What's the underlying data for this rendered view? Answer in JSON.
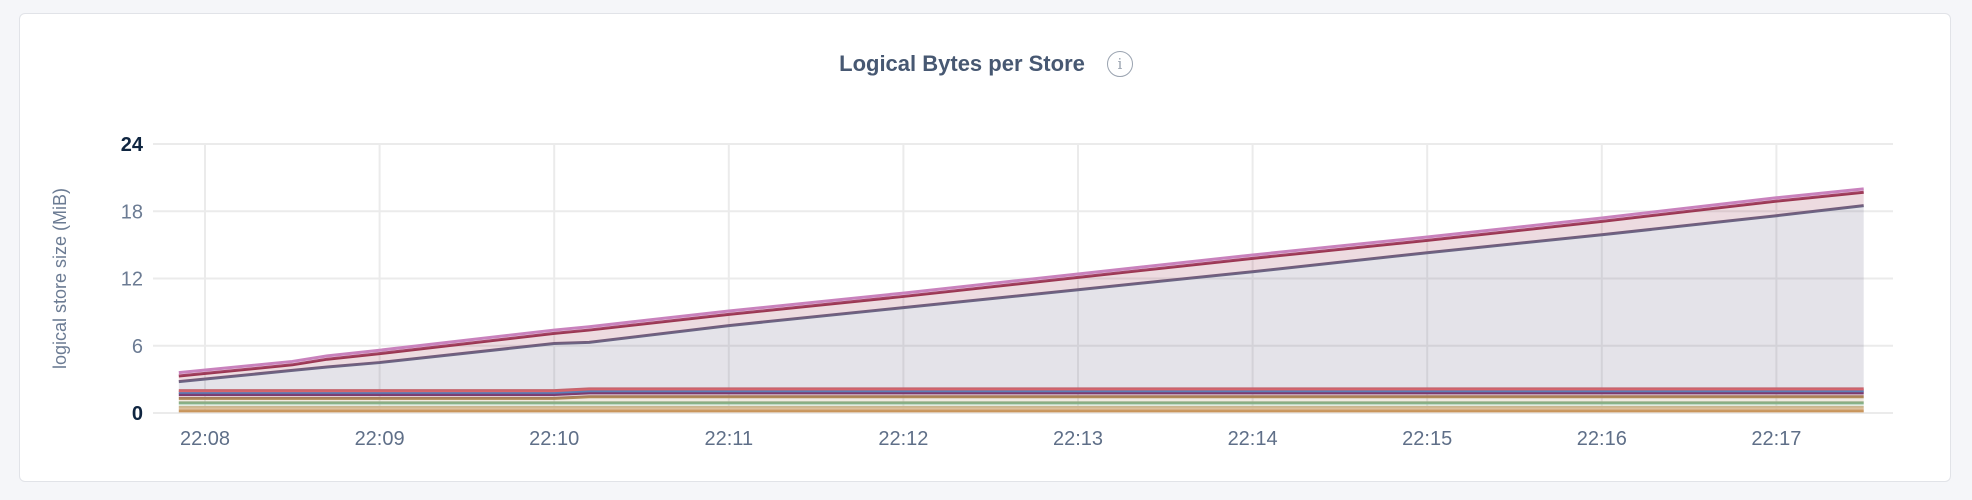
{
  "chart_data": {
    "type": "area",
    "stacked": true,
    "title": "Logical Bytes per Store",
    "ylabel": "logical store size (MiB)",
    "xlabel": "",
    "ylim": [
      0,
      24
    ],
    "yticks": [
      "0",
      "6",
      "12",
      "18",
      "24"
    ],
    "xticks": [
      "22:08",
      "22:09",
      "22:10",
      "22:11",
      "22:12",
      "22:13",
      "22:14",
      "22:15",
      "22:16",
      "22:17"
    ],
    "grid": true,
    "x": [
      "22:07:51",
      "22:08:30",
      "22:08:42",
      "22:09:00",
      "22:10:00",
      "22:10:12",
      "22:11:00",
      "22:12:00",
      "22:13:00",
      "22:14:00",
      "22:15:00",
      "22:16:00",
      "22:17:00",
      "22:17:30"
    ],
    "series": [
      {
        "color": "#c9955c",
        "values": [
          0.2,
          0.2,
          0.2,
          0.2,
          0.2,
          0.2,
          0.2,
          0.2,
          0.2,
          0.2,
          0.2,
          0.2,
          0.2,
          0.2
        ]
      },
      {
        "color": "#d8b892",
        "values": [
          0.3,
          0.3,
          0.3,
          0.3,
          0.3,
          0.3,
          0.3,
          0.3,
          0.3,
          0.3,
          0.3,
          0.3,
          0.3,
          0.3
        ]
      },
      {
        "color": "#86b38a",
        "values": [
          0.4,
          0.4,
          0.4,
          0.4,
          0.4,
          0.4,
          0.4,
          0.4,
          0.4,
          0.4,
          0.4,
          0.4,
          0.4,
          0.4
        ]
      },
      {
        "color": "#b08b57",
        "values": [
          0.4,
          0.4,
          0.4,
          0.4,
          0.4,
          0.55,
          0.55,
          0.55,
          0.55,
          0.55,
          0.55,
          0.55,
          0.55,
          0.55
        ]
      },
      {
        "color": "#7d3a6e",
        "values": [
          0.35,
          0.35,
          0.35,
          0.35,
          0.35,
          0.35,
          0.35,
          0.35,
          0.35,
          0.35,
          0.35,
          0.35,
          0.35,
          0.35
        ]
      },
      {
        "color": "#5c7fb8",
        "values": [
          0.2,
          0.2,
          0.2,
          0.2,
          0.2,
          0.2,
          0.2,
          0.2,
          0.2,
          0.2,
          0.2,
          0.2,
          0.2,
          0.2
        ]
      },
      {
        "color": "#d9646a",
        "values": [
          0.15,
          0.15,
          0.15,
          0.15,
          0.15,
          0.15,
          0.15,
          0.15,
          0.15,
          0.15,
          0.15,
          0.15,
          0.15,
          0.15
        ]
      },
      {
        "color": "#6b6584",
        "values": [
          0.8,
          1.8,
          2.1,
          2.5,
          4.2,
          4.15,
          5.65,
          7.25,
          8.85,
          10.45,
          12.15,
          13.75,
          15.45,
          16.35
        ]
      },
      {
        "color": "#9b3651",
        "values": [
          0.5,
          0.5,
          0.7,
          0.8,
          0.9,
          1.1,
          1.0,
          1.0,
          1.1,
          1.2,
          1.1,
          1.2,
          1.3,
          1.2
        ]
      },
      {
        "color": "#c982bd",
        "values": [
          0.3,
          0.3,
          0.3,
          0.3,
          0.3,
          0.3,
          0.3,
          0.3,
          0.3,
          0.3,
          0.3,
          0.3,
          0.3,
          0.3
        ]
      }
    ]
  },
  "info_icon": "info-icon"
}
